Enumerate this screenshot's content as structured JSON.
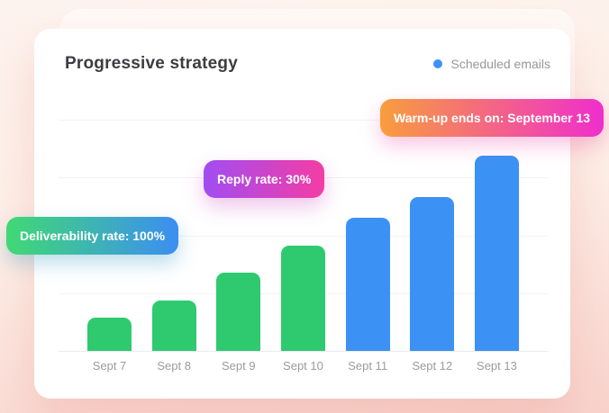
{
  "header": {
    "title": "Progressive strategy"
  },
  "legend": {
    "label": "Scheduled emails",
    "dot_color": "#3b92f4",
    "position": "top-right"
  },
  "badges": [
    {
      "id": "deliverability",
      "label": "Deliverability rate: 100%",
      "gradient": [
        "#40d974",
        "#3c8ef2"
      ]
    },
    {
      "id": "reply",
      "label": "Reply rate: 30%",
      "gradient": [
        "#a14df2",
        "#f43da4"
      ]
    },
    {
      "id": "warmup",
      "label": "Warm-up ends on: September 13",
      "gradient": [
        "#f89d3d",
        "#ef2ecd"
      ]
    }
  ],
  "colors": {
    "background_gradient": [
      "#fdf3ee",
      "#fdeee6",
      "#f8d3cd"
    ],
    "card": "#ffffff",
    "title_text": "#3c3c43",
    "muted_text": "#97979d",
    "gridline": "#f3f3f5",
    "bar_green": "#2fca70",
    "bar_blue": "#3b92f4"
  },
  "chart_data": {
    "type": "bar",
    "title": "Progressive strategy",
    "categories": [
      "Sept 7",
      "Sept 8",
      "Sept 9",
      "Sept 10",
      "Sept 11",
      "Sept 12",
      "Sept 13"
    ],
    "series": [
      {
        "name": "Scheduled emails",
        "values": [
          17,
          26,
          40,
          54,
          68,
          79,
          100
        ]
      }
    ],
    "values_unit": "relative bar height, % of tallest bar (y-axis is unlabeled)",
    "point_colors": [
      "green",
      "green",
      "green",
      "green",
      "blue",
      "blue",
      "blue"
    ],
    "palette": {
      "green": "#2fca70",
      "blue": "#3b92f4"
    },
    "xlabel": "",
    "ylabel": "",
    "ylim": [
      0,
      100
    ],
    "grid": "4 horizontal gridlines plus baseline, unlabeled",
    "legend_position": "top-right",
    "annotations": [
      "Deliverability rate: 100%",
      "Reply rate: 30%",
      "Warm-up ends on: September 13"
    ]
  }
}
